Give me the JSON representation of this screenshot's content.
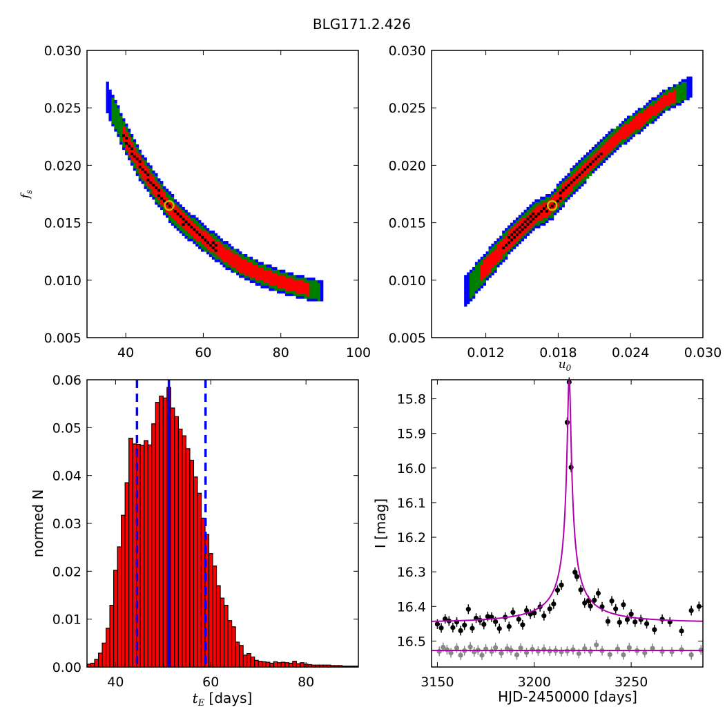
{
  "figure_title": "BLG171.2.426",
  "colors": {
    "outer": "#0000ff",
    "mid": "#008000",
    "inner": "#ff0000",
    "best": "#000000",
    "marker_edge": "#bfbf00",
    "hist_fill": "#ff0000",
    "median_line": "#0000ff",
    "model_line": "#b000b0",
    "lc_main": "#000000",
    "lc_resid": "#888888"
  },
  "chart_data": [
    {
      "type": "heatmap",
      "panel": "top-left",
      "xlabel": "",
      "ylabel": "f_s",
      "xlim": [
        30,
        100
      ],
      "ylim": [
        0.005,
        0.03
      ],
      "xticks": [
        "40",
        "60",
        "80",
        "100"
      ],
      "yticks": [
        "0.005",
        "0.010",
        "0.015",
        "0.020",
        "0.025",
        "0.030"
      ],
      "curve": [
        [
          35,
          0.0262
        ],
        [
          36,
          0.0252
        ],
        [
          38,
          0.0238
        ],
        [
          40,
          0.0223
        ],
        [
          42,
          0.021
        ],
        [
          45,
          0.0193
        ],
        [
          48,
          0.0179
        ],
        [
          51,
          0.0165
        ],
        [
          55,
          0.0151
        ],
        [
          60,
          0.0137
        ],
        [
          65,
          0.0124
        ],
        [
          70,
          0.0113
        ],
        [
          75,
          0.0105
        ],
        [
          80,
          0.0099
        ],
        [
          85,
          0.0094
        ],
        [
          91,
          0.009
        ]
      ],
      "best_fit": [
        51.2,
        0.0165
      ]
    },
    {
      "type": "heatmap",
      "panel": "top-right",
      "xlabel": "u_0",
      "ylabel": "",
      "xlim": [
        0.0075,
        0.03
      ],
      "ylim": [
        0.005,
        0.03
      ],
      "xticks": [
        "0.012",
        "0.018",
        "0.024",
        "0.030"
      ],
      "yticks": [
        "0.005",
        "0.010",
        "0.015",
        "0.020",
        "0.025",
        "0.030"
      ],
      "curve": [
        [
          0.0102,
          0.0089
        ],
        [
          0.012,
          0.0111
        ],
        [
          0.014,
          0.0136
        ],
        [
          0.016,
          0.0156
        ],
        [
          0.0175,
          0.0165
        ],
        [
          0.019,
          0.0184
        ],
        [
          0.021,
          0.0205
        ],
        [
          0.023,
          0.0225
        ],
        [
          0.025,
          0.0241
        ],
        [
          0.027,
          0.0257
        ],
        [
          0.029,
          0.0268
        ]
      ],
      "best_fit": [
        0.0175,
        0.0165
      ]
    },
    {
      "type": "bar",
      "panel": "bottom-left",
      "xlabel": "t_E [days]",
      "ylabel": "normed N",
      "xlim": [
        34,
        91
      ],
      "ylim": [
        0,
        0.06
      ],
      "xticks": [
        "40",
        "60",
        "80"
      ],
      "yticks": [
        "0.00",
        "0.01",
        "0.02",
        "0.03",
        "0.04",
        "0.05",
        "0.06"
      ],
      "bin_start": 34,
      "bin_width": 0.8,
      "values": [
        0.0006,
        0.0008,
        0.0016,
        0.0029,
        0.005,
        0.0081,
        0.0129,
        0.0202,
        0.0251,
        0.0317,
        0.0385,
        0.0478,
        0.0466,
        0.0465,
        0.0463,
        0.0473,
        0.0464,
        0.0508,
        0.0553,
        0.0566,
        0.0562,
        0.0584,
        0.0541,
        0.0523,
        0.0497,
        0.0483,
        0.0456,
        0.0432,
        0.0397,
        0.0363,
        0.0311,
        0.0277,
        0.0237,
        0.0211,
        0.017,
        0.0144,
        0.0129,
        0.0097,
        0.0084,
        0.0052,
        0.0045,
        0.0025,
        0.0028,
        0.0021,
        0.0014,
        0.0012,
        0.0011,
        0.001,
        0.0008,
        0.0011,
        0.0009,
        0.001,
        0.0009,
        0.0008,
        0.0012,
        0.0007,
        0.0009,
        0.0006,
        0.0005,
        0.0004,
        0.0004,
        0.0004,
        0.0004,
        0.0004,
        0.0003,
        0.0003,
        0.0003,
        0.0002,
        0.0002,
        0.0002,
        0.0002
      ],
      "median": 51.2,
      "interval": [
        44.5,
        58.9
      ]
    },
    {
      "type": "scatter",
      "panel": "bottom-right",
      "xlabel": "HJD-2450000 [days]",
      "ylabel": "I [mag]",
      "xlim": [
        3147,
        3287
      ],
      "ylim": [
        16.575,
        15.745
      ],
      "xticks": [
        "3150",
        "3200",
        "3250"
      ],
      "yticks": [
        "15.8",
        "15.9",
        "16.0",
        "16.1",
        "16.2",
        "16.3",
        "16.4",
        "16.5"
      ],
      "model": {
        "t0": 3218,
        "u0": 0.0175,
        "tE": 51.2,
        "fs": 0.0165,
        "I_base": 16.446
      },
      "baseline_model": 16.527,
      "series": [
        {
          "x": [
            3150,
            3152,
            3154,
            3156,
            3158,
            3160,
            3162,
            3164,
            3166,
            3168,
            3170,
            3172,
            3174,
            3176,
            3178,
            3180,
            3182,
            3185,
            3187,
            3189,
            3192,
            3194,
            3196,
            3198,
            3200,
            3203,
            3205,
            3208,
            3210,
            3212,
            3214,
            3217,
            3218,
            3219,
            3221,
            3222,
            3224,
            3226,
            3228,
            3229,
            3231,
            3233,
            3235,
            3238,
            3240,
            3242,
            3244,
            3246,
            3248,
            3250,
            3252,
            3255,
            3258,
            3262,
            3266,
            3270,
            3276,
            3281,
            3285
          ],
          "y": [
            16.451,
            16.462,
            16.436,
            16.442,
            16.461,
            16.445,
            16.47,
            16.454,
            16.408,
            16.463,
            16.434,
            16.44,
            16.452,
            16.429,
            16.431,
            16.444,
            16.464,
            16.431,
            16.458,
            16.417,
            16.437,
            16.453,
            16.412,
            16.422,
            16.419,
            16.401,
            16.427,
            16.407,
            16.393,
            16.353,
            16.338,
            15.868,
            15.752,
            15.998,
            16.301,
            16.314,
            16.352,
            16.39,
            16.383,
            16.399,
            16.382,
            16.362,
            16.401,
            16.443,
            16.384,
            16.407,
            16.446,
            16.395,
            16.438,
            16.422,
            16.445,
            16.438,
            16.45,
            16.467,
            16.437,
            16.445,
            16.471,
            16.412,
            16.4
          ]
        },
        {
          "x": [
            3151,
            3153,
            3155,
            3157,
            3160,
            3162,
            3164,
            3167,
            3169,
            3171,
            3173,
            3175,
            3178,
            3180,
            3183,
            3186,
            3188,
            3191,
            3193,
            3196,
            3199,
            3202,
            3205,
            3208,
            3211,
            3214,
            3217,
            3220,
            3223,
            3226,
            3229,
            3232,
            3235,
            3239,
            3243,
            3246,
            3249,
            3253,
            3257,
            3261,
            3266,
            3271,
            3276,
            3281,
            3286
          ],
          "y": [
            16.53,
            16.518,
            16.525,
            16.534,
            16.52,
            16.541,
            16.528,
            16.517,
            16.531,
            16.526,
            16.541,
            16.523,
            16.53,
            16.519,
            16.535,
            16.522,
            16.527,
            16.54,
            16.52,
            16.533,
            16.524,
            16.529,
            16.524,
            16.529,
            16.528,
            16.531,
            16.529,
            16.525,
            16.536,
            16.522,
            16.53,
            16.511,
            16.528,
            16.539,
            16.523,
            16.54,
            16.519,
            16.528,
            16.534,
            16.521,
            16.53,
            16.531,
            16.525,
            16.54,
            16.526
          ]
        }
      ]
    }
  ]
}
